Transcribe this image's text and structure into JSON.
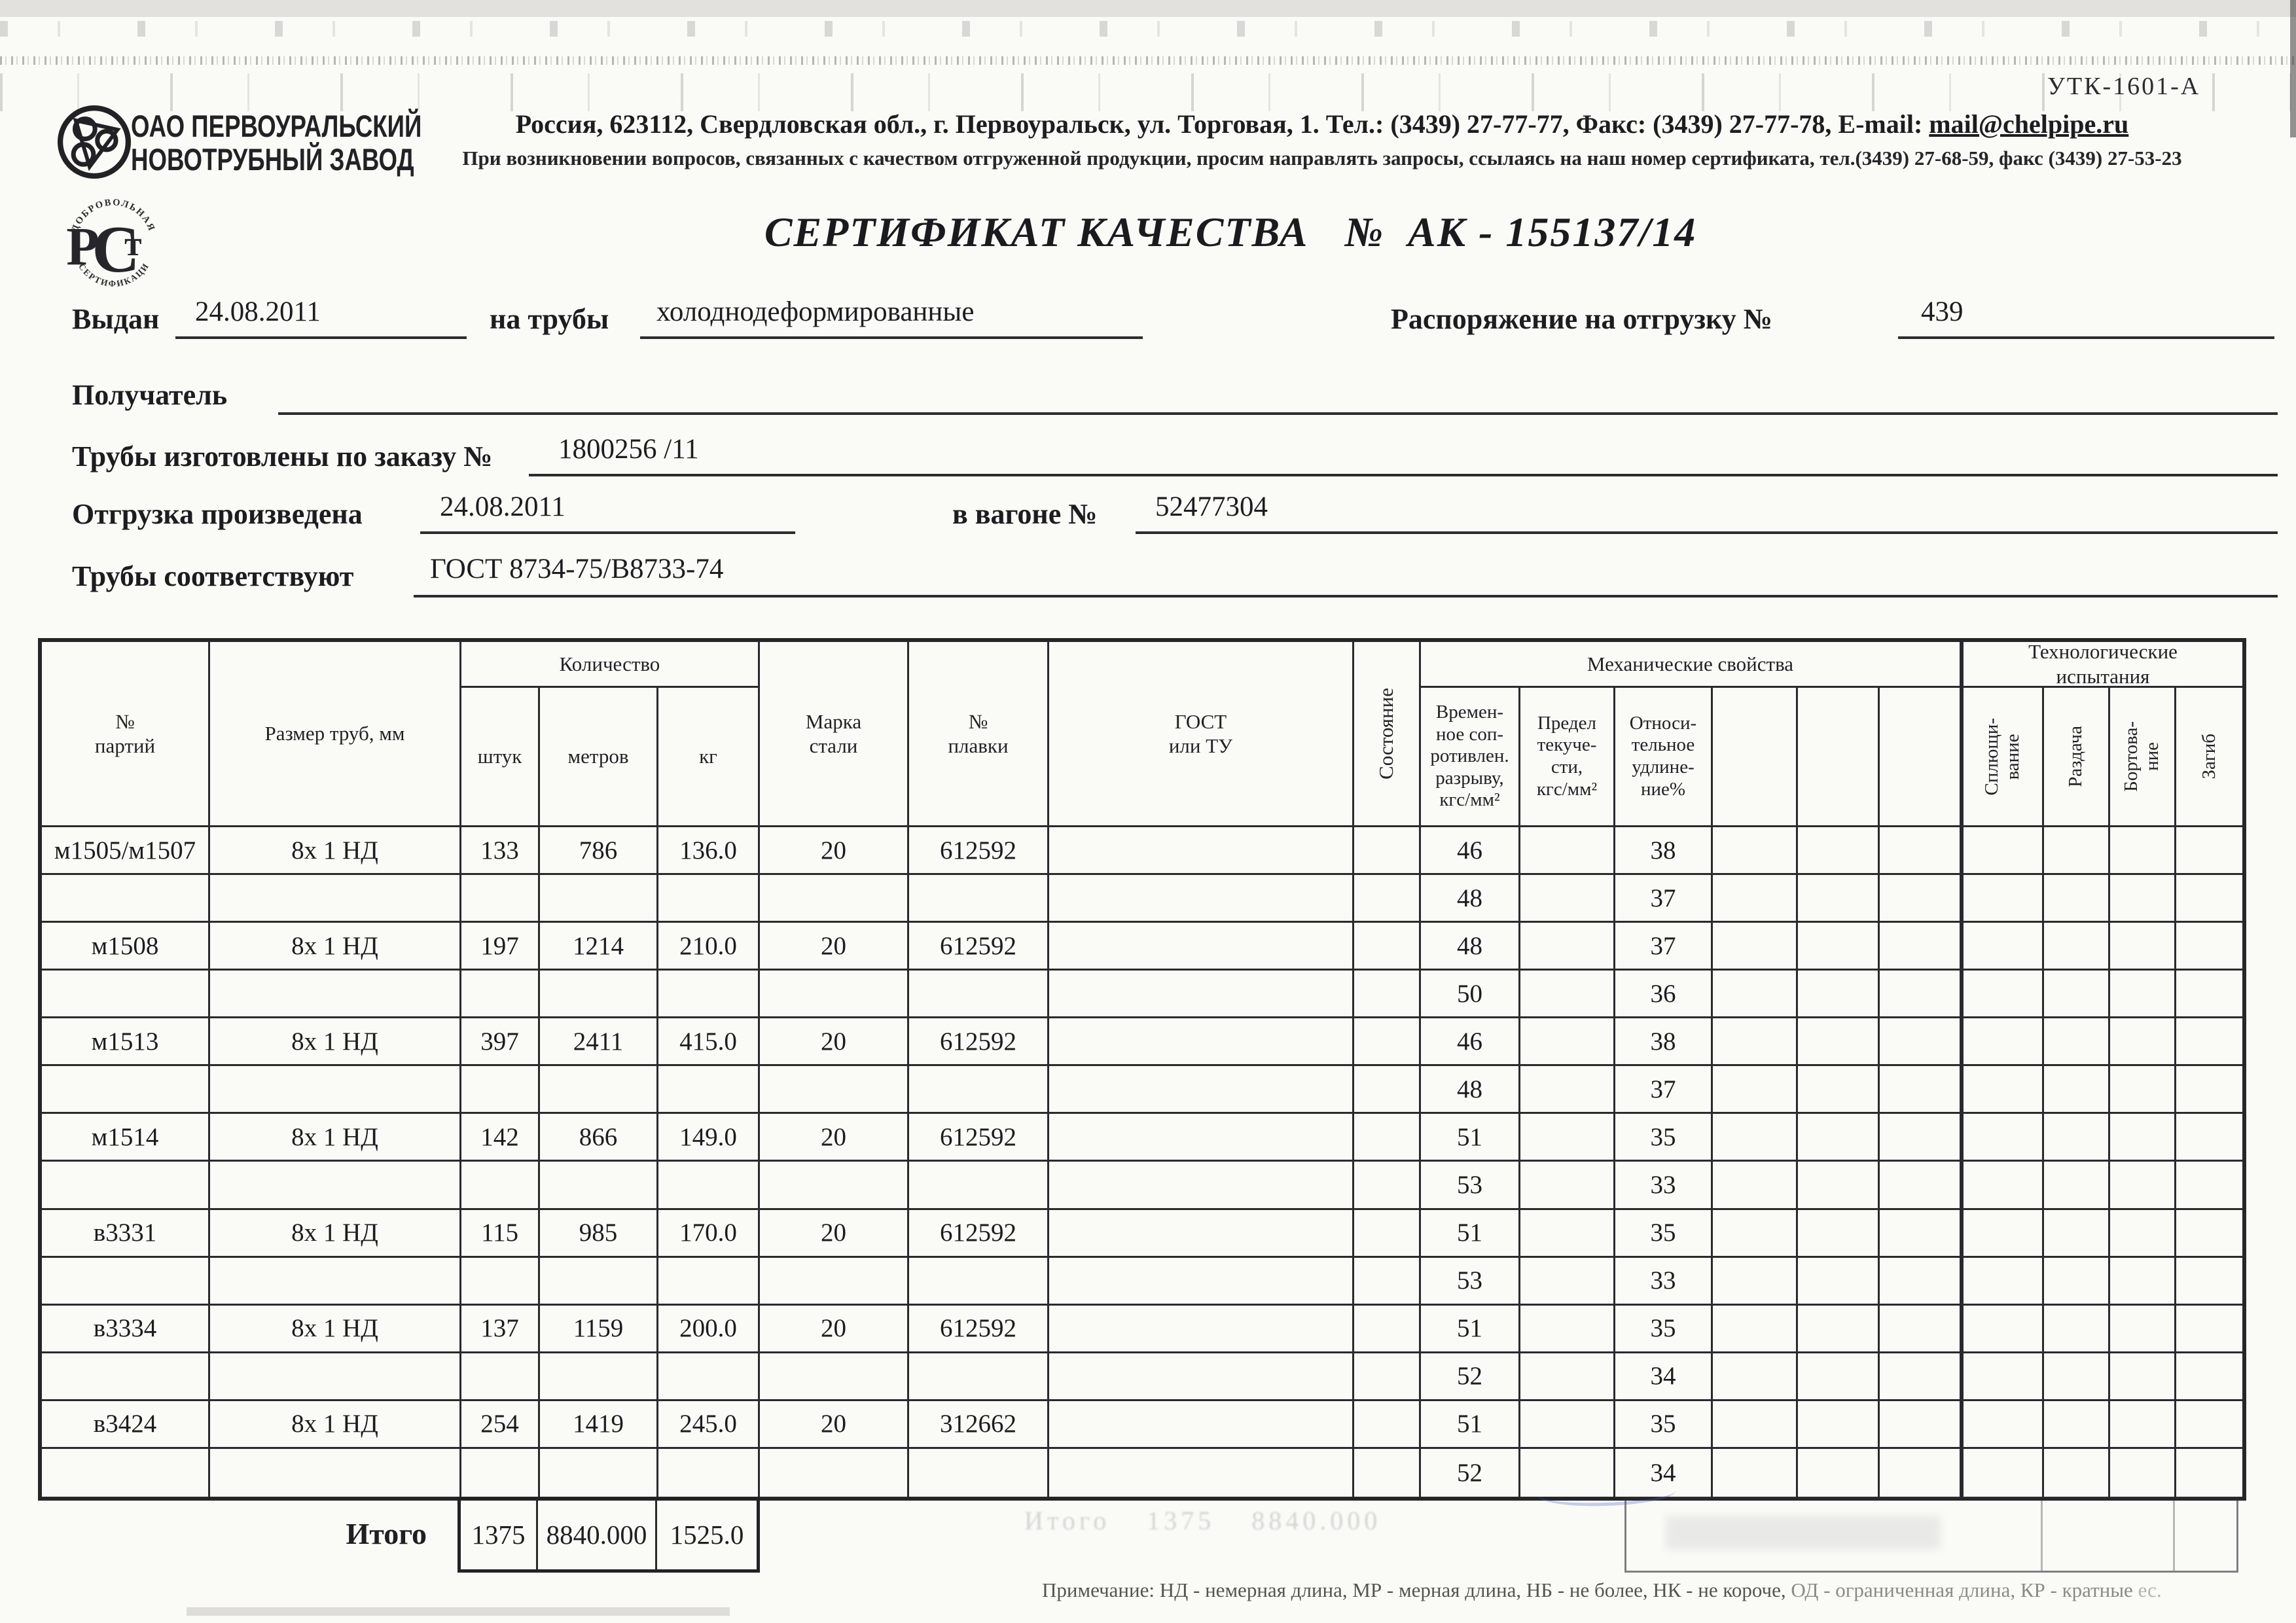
{
  "form_code": "УТК-1601-А",
  "company": {
    "name": "ОАО ПЕРВОУРАЛЬСКИЙ\nНОВОТРУБНЫЙ ЗАВОД",
    "address_main": "Россия, 623112, Свердловская обл., г. Первоуральск, ул. Торговая, 1. Тел.: (3439) 27-77-77, Факс: (3439) 27-77-78,",
    "email_label": "E-mail:",
    "email": "mail@chelpipe.ru",
    "contact_line": "При возникновении вопросов, связанных с качеством отгруженной продукции, просим направлять запросы, ссылаясь на наш номер сертификата, тел.(3439) 27-68-59, факс (3439) 27-53-23",
    "rst_top_arc": "ДОБРОВОЛЬНАЯ",
    "rst_bottom_arc": "СЕРТИФИКАЦИЯ",
    "rst_letters_p": "Р",
    "rst_letters_c": "С",
    "rst_letters_t": "т"
  },
  "title": {
    "label": "СЕРТИФИКАТ КАЧЕСТВА",
    "num_sign": "№",
    "number": "АК - 155137/14"
  },
  "fields": {
    "issued_label": "Выдан",
    "issued_value": "24.08.2011",
    "pipes_label": "на трубы",
    "pipes_value": "холоднодеформированные",
    "order_label": "Распоряжение на отгрузку №",
    "order_value": "439",
    "receiver_label": "Получатель",
    "receiver_value": "",
    "made_label": "Трубы изготовлены по заказу №",
    "made_value": "1800256  /11",
    "shipped_label": "Отгрузка произведена",
    "shipped_value": "24.08.2011",
    "wagon_label": "в вагоне №",
    "wagon_value": "52477304",
    "conform_label": "Трубы соответствуют",
    "conform_value": "ГОСТ 8734-75/В8733-74"
  },
  "table": {
    "headers": {
      "batch": "№\nпартий",
      "size": "Размер труб, мм",
      "qty_group": "Количество",
      "pcs": "штук",
      "m": "метров",
      "kg": "кг",
      "steel": "Марка\nстали",
      "heat": "№\nплавки",
      "gost": "ГОСТ\nили ТУ",
      "state": "Состояние",
      "mech_group": "Механические свойства",
      "tensile": "Времен-\nное соп-\nротивлен.\nразрыву,\nкгс/мм²",
      "yield": "Предел\nтекуче-\nсти,\nкгс/мм²",
      "elong": "Относи-\nтельное\nудлине-\nние%",
      "tech_group": "Технологические\nиспытания",
      "flat": "Сплющи-\nвание",
      "expand": "Раздача",
      "flange": "Бортова-\nние",
      "bend": "Загиб"
    },
    "rows": [
      {
        "batch": "м1505/м1507",
        "size": "8х 1 НД",
        "pcs": "133",
        "m": "786",
        "kg": "136.0",
        "steel": "20",
        "heat": "612592",
        "tensile": "46",
        "elong": "38"
      },
      {
        "tensile": "48",
        "elong": "37"
      },
      {
        "batch": "м1508",
        "size": "8х 1 НД",
        "pcs": "197",
        "m": "1214",
        "kg": "210.0",
        "steel": "20",
        "heat": "612592",
        "tensile": "48",
        "elong": "37"
      },
      {
        "tensile": "50",
        "elong": "36"
      },
      {
        "batch": "м1513",
        "size": "8х 1 НД",
        "pcs": "397",
        "m": "2411",
        "kg": "415.0",
        "steel": "20",
        "heat": "612592",
        "tensile": "46",
        "elong": "38"
      },
      {
        "tensile": "48",
        "elong": "37"
      },
      {
        "batch": "м1514",
        "size": "8х 1 НД",
        "pcs": "142",
        "m": "866",
        "kg": "149.0",
        "steel": "20",
        "heat": "612592",
        "tensile": "51",
        "elong": "35"
      },
      {
        "tensile": "53",
        "elong": "33"
      },
      {
        "batch": "в3331",
        "size": "8х 1 НД",
        "pcs": "115",
        "m": "985",
        "kg": "170.0",
        "steel": "20",
        "heat": "612592",
        "tensile": "51",
        "elong": "35"
      },
      {
        "tensile": "53",
        "elong": "33"
      },
      {
        "batch": "в3334",
        "size": "8х 1 НД",
        "pcs": "137",
        "m": "1159",
        "kg": "200.0",
        "steel": "20",
        "heat": "612592",
        "tensile": "51",
        "elong": "35"
      },
      {
        "tensile": "52",
        "elong": "34"
      },
      {
        "batch": "в3424",
        "size": "8х 1 НД",
        "pcs": "254",
        "m": "1419",
        "kg": "245.0",
        "steel": "20",
        "heat": "312662",
        "tensile": "51",
        "elong": "35"
      },
      {
        "tensile": "52",
        "elong": "34"
      }
    ],
    "totals": {
      "label": "Итого",
      "pcs": "1375",
      "m": "8840.000",
      "kg": "1525.0"
    }
  },
  "note": {
    "lead": "Примечание: НД - немерная длина, МР - мерная длина, НБ - не более, НК - не короче,",
    "tail": " ОД - ограниченная длина, КР - кратные",
    "end": "  ес."
  },
  "artifacts": {
    "ghost_totals": "Итого     1375   8840.000"
  }
}
